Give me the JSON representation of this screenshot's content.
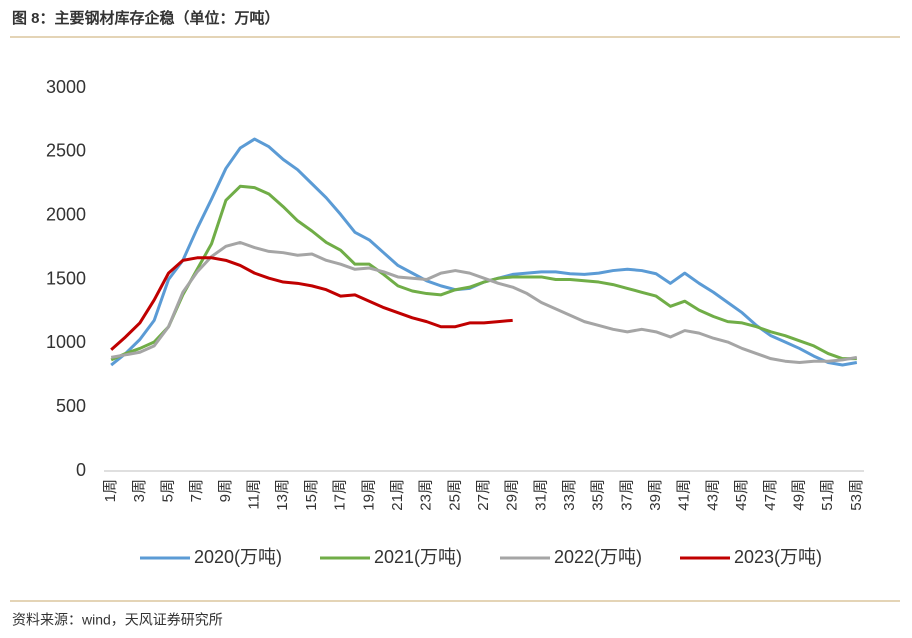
{
  "chart_data": {
    "type": "line",
    "title": "图 8：主要钢材库存企稳（单位：万吨）",
    "categories": [
      "1周",
      null,
      "3周",
      null,
      "5周",
      null,
      "7周",
      null,
      "9周",
      null,
      "11周",
      null,
      "13周",
      null,
      "15周",
      null,
      "17周",
      null,
      "19周",
      null,
      "21周",
      null,
      "23周",
      null,
      "25周",
      null,
      "27周",
      null,
      "29周",
      null,
      "31周",
      null,
      "33周",
      null,
      "35周",
      null,
      "37周",
      null,
      "39周",
      null,
      "41周",
      null,
      "43周",
      null,
      "45周",
      null,
      "47周",
      null,
      "49周",
      null,
      "51周",
      null,
      "53周"
    ],
    "series": [
      {
        "name": "2020(万吨)",
        "color": "#5b9bd5",
        "values": [
          830,
          920,
          1030,
          1180,
          1500,
          1650,
          1900,
          2130,
          2370,
          2530,
          2600,
          2540,
          2440,
          2360,
          2250,
          2140,
          2010,
          1870,
          1810,
          1710,
          1610,
          1550,
          1490,
          1450,
          1420,
          1430,
          1480,
          1510,
          1540,
          1550,
          1560,
          1560,
          1545,
          1540,
          1550,
          1570,
          1580,
          1570,
          1545,
          1470,
          1550,
          1470,
          1400,
          1320,
          1240,
          1140,
          1060,
          1010,
          960,
          900,
          850,
          830,
          850
        ]
      },
      {
        "name": "2021(万吨)",
        "color": "#70ad47",
        "values": [
          870,
          920,
          960,
          1010,
          1130,
          1380,
          1580,
          1780,
          2120,
          2230,
          2220,
          2170,
          2070,
          1960,
          1880,
          1790,
          1730,
          1620,
          1620,
          1540,
          1450,
          1410,
          1390,
          1380,
          1420,
          1440,
          1480,
          1510,
          1520,
          1520,
          1520,
          1500,
          1500,
          1490,
          1480,
          1460,
          1430,
          1400,
          1370,
          1290,
          1330,
          1260,
          1210,
          1170,
          1160,
          1130,
          1090,
          1060,
          1020,
          980,
          920,
          880,
          880
        ]
      },
      {
        "name": "2022(万吨)",
        "color": "#a5a5a5",
        "values": [
          890,
          910,
          930,
          980,
          1130,
          1400,
          1560,
          1680,
          1760,
          1790,
          1750,
          1720,
          1710,
          1690,
          1700,
          1650,
          1620,
          1580,
          1590,
          1560,
          1520,
          1510,
          1500,
          1550,
          1570,
          1550,
          1510,
          1470,
          1440,
          1390,
          1320,
          1270,
          1220,
          1170,
          1140,
          1110,
          1090,
          1110,
          1090,
          1050,
          1100,
          1080,
          1040,
          1010,
          960,
          920,
          880,
          860,
          850,
          860,
          860,
          870,
          890
        ]
      },
      {
        "name": "2023(万吨)",
        "color": "#c00000",
        "values": [
          950,
          1050,
          1160,
          1340,
          1550,
          1650,
          1670,
          1670,
          1650,
          1610,
          1550,
          1510,
          1480,
          1470,
          1450,
          1420,
          1370,
          1380,
          1330,
          1280,
          1240,
          1200,
          1170,
          1130,
          1130,
          1160,
          1160,
          1170,
          1180,
          null,
          null,
          null,
          null,
          null,
          null,
          null,
          null,
          null,
          null,
          null,
          null,
          null,
          null,
          null,
          null,
          null,
          null,
          null,
          null,
          null,
          null,
          null,
          null
        ]
      }
    ],
    "ylim": [
      0,
      3000
    ],
    "yticks": [
      0,
      500,
      1000,
      1500,
      2000,
      2500,
      3000
    ],
    "grid": false,
    "legend": "bottom"
  },
  "source": "资料来源：wind，天风证券研究所"
}
